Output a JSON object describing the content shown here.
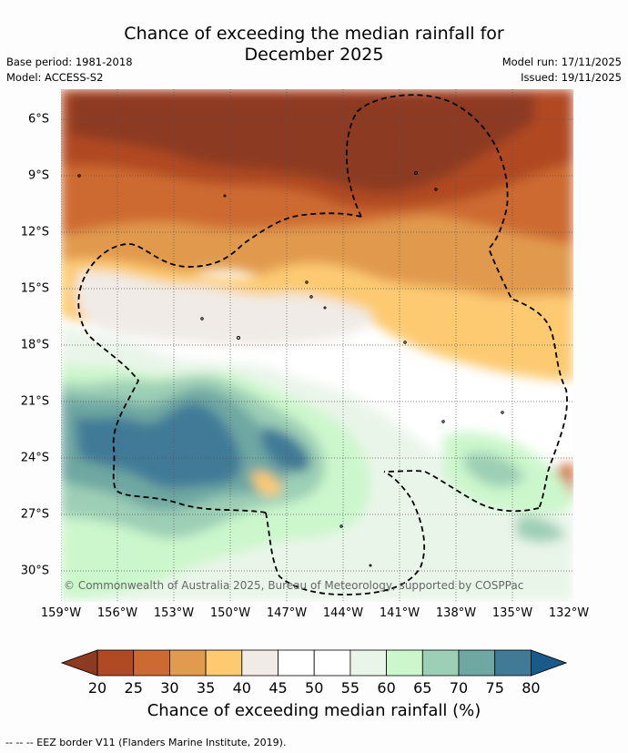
{
  "title_line1": "Chance of exceeding the median rainfall for",
  "title_line2": "December 2025",
  "base_period": "Base period: 1981-2018",
  "model": "Model: ACCESS-S2",
  "model_run": "Model run: 17/11/2025",
  "issued": "Issued: 19/11/2025",
  "lat_labels": [
    "6°S",
    "9°S",
    "12°S",
    "15°S",
    "18°S",
    "21°S",
    "24°S",
    "27°S",
    "30°S"
  ],
  "lon_labels": [
    "159°W",
    "156°W",
    "153°W",
    "150°W",
    "147°W",
    "144°W",
    "141°W",
    "138°W",
    "135°W",
    "132°W"
  ],
  "copyright": "© Commonwealth of Australia 2025, Bureau of Meteorology, supported by COSPPac",
  "colorbar": {
    "ticks": [
      "20",
      "25",
      "30",
      "35",
      "40",
      "45",
      "50",
      "55",
      "60",
      "65",
      "70",
      "75",
      "80"
    ],
    "colors": [
      "#8c3a20",
      "#b04a24",
      "#cd6a33",
      "#e19a4e",
      "#fdca72",
      "#f0ebe6",
      "#ffffff",
      "#ffffff",
      "#eaf5ea",
      "#ccf7cc",
      "#9dcfb6",
      "#6fa7a2",
      "#417a97",
      "#1a5a8a"
    ],
    "label": "Chance of exceeding median rainfall (%)"
  },
  "footnote": "--  --  -- EEZ border V11 (Flanders Marine Institute, 2019)."
}
